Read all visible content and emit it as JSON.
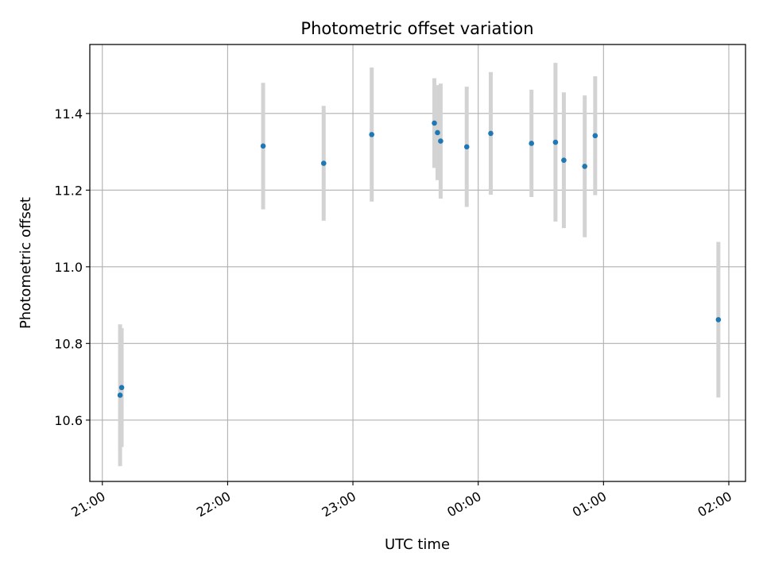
{
  "chart_data": {
    "type": "scatter",
    "title": "Photometric offset variation",
    "xlabel": "UTC time",
    "ylabel": "Photometric offset",
    "xlim": [
      "20:54",
      "02:08"
    ],
    "ylim": [
      10.44,
      11.58
    ],
    "x_ticks": [
      "21:00",
      "22:00",
      "23:00",
      "00:00",
      "01:00",
      "02:00"
    ],
    "y_ticks": [
      "10.6",
      "10.8",
      "11.0",
      "11.2",
      "11.4"
    ],
    "y_tick_values": [
      10.6,
      10.8,
      11.0,
      11.2,
      11.4
    ],
    "grid": true,
    "marker_color": "#1f77b4",
    "errorbar_color": "#d3d3d3",
    "points": [
      {
        "x": "21:08:30",
        "y": 10.665,
        "yerr": 0.185
      },
      {
        "x": "21:09:15",
        "y": 10.685,
        "yerr": 0.155
      },
      {
        "x": "22:17:00",
        "y": 11.315,
        "yerr": 0.165
      },
      {
        "x": "22:46:00",
        "y": 11.27,
        "yerr": 0.15
      },
      {
        "x": "23:09:00",
        "y": 11.345,
        "yerr": 0.175
      },
      {
        "x": "23:39:00",
        "y": 11.375,
        "yerr": 0.117
      },
      {
        "x": "23:40:30",
        "y": 11.35,
        "yerr": 0.124
      },
      {
        "x": "23:42:00",
        "y": 11.328,
        "yerr": 0.15
      },
      {
        "x": "23:54:30",
        "y": 11.313,
        "yerr": 0.157
      },
      {
        "x": "00:06:00",
        "y": 11.348,
        "yerr": 0.16
      },
      {
        "x": "00:25:30",
        "y": 11.322,
        "yerr": 0.14
      },
      {
        "x": "00:37:00",
        "y": 11.325,
        "yerr": 0.207
      },
      {
        "x": "00:41:00",
        "y": 11.278,
        "yerr": 0.177
      },
      {
        "x": "00:51:00",
        "y": 11.262,
        "yerr": 0.185
      },
      {
        "x": "00:56:00",
        "y": 11.342,
        "yerr": 0.155
      },
      {
        "x": "01:55:00",
        "y": 10.862,
        "yerr": 0.203
      }
    ]
  }
}
